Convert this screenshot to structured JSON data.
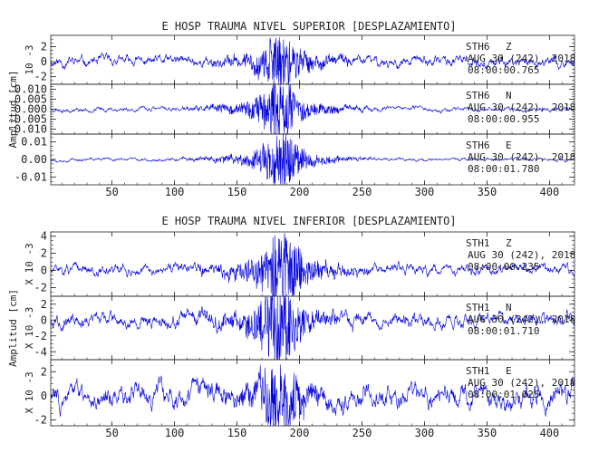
{
  "chart_data": [
    {
      "type": "line",
      "title": "E HOSP TRAUMA NIVEL SUPERIOR [DESPLAZAMIENTO]",
      "ylabel": "Amplitud [cm]",
      "xlim": [
        1,
        420
      ],
      "xticks": [
        50,
        100,
        150,
        200,
        250,
        300,
        350,
        400
      ],
      "grid": false,
      "color": "#0000dd",
      "traces": [
        {
          "station": "STH6",
          "component": "Z",
          "date": "AUG 30 (242), 2018",
          "time": "08:00:00.765",
          "scale_label": "10 -3",
          "ylim": [
            -3,
            3.5
          ],
          "ytick_values": [
            -2,
            0,
            2
          ],
          "ytick_labels": [
            "-2",
            "0",
            "2"
          ],
          "noise": 0.55,
          "peak": 2.6,
          "peak_x": 185,
          "seed": 11
        },
        {
          "station": "STH6",
          "component": "N",
          "date": "AUG 30 (242), 2018",
          "time": "08:00:00.955",
          "ylim": [
            -0.0125,
            0.0125
          ],
          "ytick_values": [
            -0.01,
            -0.005,
            0,
            0.005,
            0.01
          ],
          "ytick_labels": [
            "-0.010",
            "-0.005",
            "0.000",
            "0.005",
            "0.010"
          ],
          "noise": 0.0009,
          "peak": 0.011,
          "peak_x": 183,
          "seed": 23
        },
        {
          "station": "STH6",
          "component": "E",
          "date": "AUG 30 (242), 2018",
          "time": "08:00:01.780",
          "ylim": [
            -0.0145,
            0.0145
          ],
          "ytick_values": [
            -0.01,
            0,
            0.01
          ],
          "ytick_labels": [
            "-0.01",
            "0.00",
            "0.01"
          ],
          "noise": 0.0007,
          "peak": 0.012,
          "peak_x": 184,
          "seed": 37
        }
      ]
    },
    {
      "type": "line",
      "title": "E HOSP TRAUMA NIVEL INFERIOR [DESPLAZAMIENTO]",
      "ylabel": "Amplitud [cm]",
      "xlim": [
        1,
        420
      ],
      "xticks": [
        50,
        100,
        150,
        200,
        250,
        300,
        350,
        400
      ],
      "grid": false,
      "color": "#0000dd",
      "traces": [
        {
          "station": "STH1",
          "component": "Z",
          "date": "AUG 30 (242), 2018",
          "time": "08:00:00.235",
          "scale_label": "X 10 -3",
          "ylim": [
            -3,
            4.5
          ],
          "ytick_values": [
            -2,
            0,
            2,
            4
          ],
          "ytick_labels": [
            "-2",
            "0",
            "2",
            "4"
          ],
          "noise": 0.5,
          "peak": 3.6,
          "peak_x": 185,
          "seed": 51
        },
        {
          "station": "STH1",
          "component": "N",
          "date": "AUG 30 (242), 2018",
          "time": "08:00:01.710",
          "scale_label": "X 10 -3",
          "ylim": [
            -5,
            3
          ],
          "ytick_values": [
            -4,
            -2,
            0,
            2
          ],
          "ytick_labels": [
            "-4",
            "-2",
            "0",
            "2"
          ],
          "noise": 0.7,
          "peak": 3.8,
          "peak_x": 183,
          "seed": 67
        },
        {
          "station": "STH1",
          "component": "E",
          "date": "AUG 30 (242), 2018",
          "time": "08:00:01.025",
          "scale_label": "X 10 -3",
          "ylim": [
            -2.5,
            3
          ],
          "ytick_values": [
            -2,
            0,
            2
          ],
          "ytick_labels": [
            "-2",
            "0",
            "2"
          ],
          "noise": 0.75,
          "peak": 2.2,
          "peak_x": 184,
          "seed": 83
        }
      ]
    }
  ]
}
